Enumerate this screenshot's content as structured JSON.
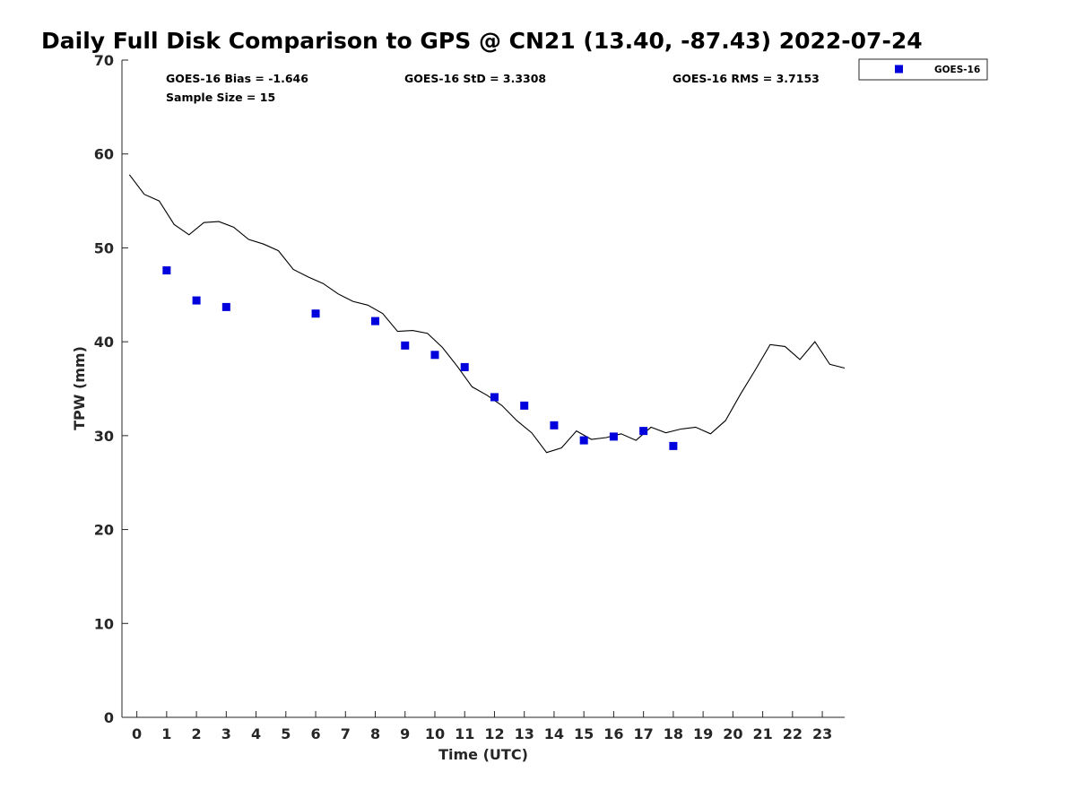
{
  "chart_data": {
    "type": "scatter",
    "title": "Daily Full Disk Comparison to GPS @ CN21 (13.40, -87.43) 2022-07-24",
    "xlabel": "Time (UTC)",
    "ylabel": "TPW (mm)",
    "xlim": [
      -0.5,
      23.75
    ],
    "ylim": [
      0,
      70
    ],
    "x_ticks": [
      "0",
      "1",
      "2",
      "3",
      "4",
      "5",
      "6",
      "7",
      "8",
      "9",
      "10",
      "11",
      "12",
      "13",
      "14",
      "15",
      "16",
      "17",
      "18",
      "19",
      "20",
      "21",
      "22",
      "23"
    ],
    "y_ticks": [
      "0",
      "10",
      "20",
      "30",
      "40",
      "50",
      "60",
      "70"
    ],
    "grid": false,
    "legend_position": "outside-top-right",
    "stats": {
      "bias": "GOES-16 Bias = -1.646",
      "std": "GOES-16 StD = 3.3308",
      "rms": "GOES-16 RMS = 3.7153",
      "sample": "Sample Size = 15"
    },
    "series": [
      {
        "name": "GOES-16",
        "style": "square-marker",
        "color": "#0000dd",
        "x": [
          1,
          2,
          3,
          6,
          8,
          9,
          10,
          11,
          12,
          13,
          14,
          15,
          16,
          17,
          18
        ],
        "y": [
          47.6,
          44.4,
          43.7,
          43.0,
          42.2,
          39.6,
          38.6,
          37.3,
          34.1,
          33.2,
          31.1,
          29.5,
          29.9,
          30.5,
          28.9
        ]
      },
      {
        "style": "line",
        "color": "#000000",
        "x": [
          -0.25,
          0.25,
          0.75,
          1.25,
          1.75,
          2.25,
          2.75,
          3.25,
          3.75,
          4.25,
          4.75,
          5.25,
          5.75,
          6.25,
          6.75,
          7.25,
          7.75,
          8.25,
          8.75,
          9.25,
          9.75,
          10.25,
          10.75,
          11.25,
          11.75,
          12.25,
          12.75,
          13.25,
          13.75,
          14.25,
          14.75,
          15.25,
          15.75,
          16.25,
          16.75,
          17.25,
          17.75,
          18.25,
          18.75,
          19.25,
          19.75,
          20.25,
          20.75,
          21.25,
          21.75,
          22.25,
          22.75,
          23.25,
          23.75
        ],
        "y": [
          57.8,
          55.7,
          55.0,
          52.5,
          51.4,
          52.7,
          52.8,
          52.2,
          50.9,
          50.4,
          49.7,
          47.7,
          46.9,
          46.2,
          45.1,
          44.3,
          43.9,
          43.0,
          41.1,
          41.2,
          40.9,
          39.4,
          37.4,
          35.2,
          34.3,
          33.2,
          31.6,
          30.3,
          28.2,
          28.7,
          30.5,
          29.6,
          29.8,
          30.2,
          29.5,
          30.9,
          30.3,
          30.7,
          30.9,
          30.2,
          31.6,
          34.4,
          37.0,
          39.7,
          39.5,
          38.1,
          40.0,
          37.6,
          37.2
        ]
      }
    ]
  }
}
